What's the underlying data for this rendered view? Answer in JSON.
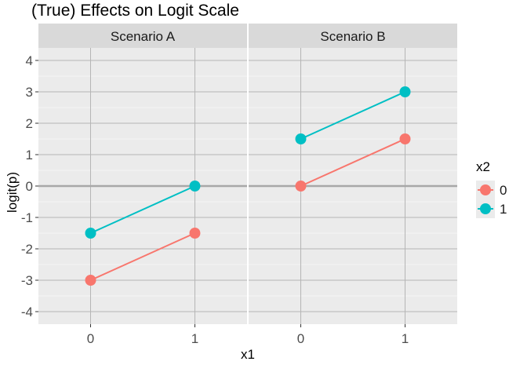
{
  "chart_data": {
    "type": "line",
    "title": "(True) Effects on Logit Scale",
    "xlabel": "x1",
    "ylabel": "logit(p)",
    "x_ticks": [
      "0",
      "1"
    ],
    "y_ticks": [
      "4",
      "3",
      "2",
      "1",
      "0",
      "-1",
      "-2",
      "-3",
      "-4"
    ],
    "xlim": [
      -0.5,
      1.5
    ],
    "ylim": [
      -4.4,
      4.4
    ],
    "grid": true,
    "reference_line_y": 0,
    "legend": {
      "title": "x2",
      "position": "right",
      "entries": [
        {
          "label": "0",
          "color": "#F8766D"
        },
        {
          "label": "1",
          "color": "#00BFC4"
        }
      ]
    },
    "panels": [
      {
        "strip": "Scenario A",
        "series": [
          {
            "name": "0",
            "color": "#F8766D",
            "x": [
              0,
              1
            ],
            "y": [
              -3,
              -1.5
            ]
          },
          {
            "name": "1",
            "color": "#00BFC4",
            "x": [
              0,
              1
            ],
            "y": [
              -1.5,
              0
            ]
          }
        ]
      },
      {
        "strip": "Scenario B",
        "series": [
          {
            "name": "0",
            "color": "#F8766D",
            "x": [
              0,
              1
            ],
            "y": [
              0,
              1.5
            ]
          },
          {
            "name": "1",
            "color": "#00BFC4",
            "x": [
              0,
              1
            ],
            "y": [
              1.5,
              3
            ]
          }
        ]
      }
    ]
  }
}
